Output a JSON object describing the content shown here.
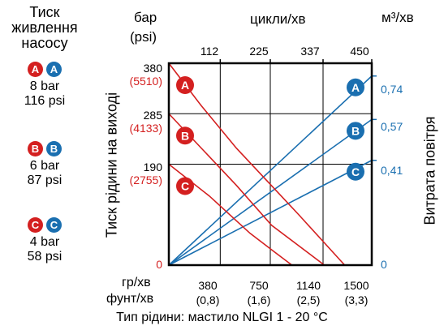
{
  "legend": {
    "title": "Тиск живлення насосу",
    "groups": [
      {
        "letter": "A",
        "bar": "8 bar",
        "psi": "116 psi"
      },
      {
        "letter": "B",
        "bar": "6 bar",
        "psi": "87 psi"
      },
      {
        "letter": "C",
        "bar": "4 bar",
        "psi": "58 psi"
      }
    ]
  },
  "colors": {
    "red": "#d42020",
    "blue": "#1a6fb0",
    "grid": "#000000"
  },
  "chart_data": {
    "type": "line",
    "left_axis": {
      "unit_top": "бар",
      "unit_bottom": "(psi)",
      "label": "Тиск рідини на виході",
      "ticks": [
        {
          "value": 0,
          "bar": "0",
          "psi": ""
        },
        {
          "value": 190,
          "bar": "190",
          "psi": "(2755)"
        },
        {
          "value": 285,
          "bar": "285",
          "psi": "(4133)"
        },
        {
          "value": 380,
          "bar": "380",
          "psi": "(5510)"
        }
      ],
      "ylim": [
        0,
        380
      ]
    },
    "right_axis": {
      "unit": "м³/хв",
      "label": "Витрата повітря",
      "ticks": [
        {
          "value": 0,
          "label": "0"
        },
        {
          "value": 0.41,
          "label": "0,41"
        },
        {
          "value": 0.57,
          "label": "0,57"
        },
        {
          "value": 0.74,
          "label": "0,74"
        }
      ],
      "ylim": [
        0,
        0.79
      ]
    },
    "top_axis": {
      "unit": "цикли/хв",
      "ticks": [
        {
          "value": 112,
          "label": "112"
        },
        {
          "value": 225,
          "label": "225"
        },
        {
          "value": 337,
          "label": "337"
        },
        {
          "value": 450,
          "label": "450"
        }
      ]
    },
    "bottom_axis": {
      "unit_top": "гр/хв",
      "unit_bottom": "фунт/хв",
      "ticks": [
        {
          "value": 380,
          "label": "380",
          "sub": "(0,8)"
        },
        {
          "value": 750,
          "label": "750",
          "sub": "(1,6)"
        },
        {
          "value": 1140,
          "label": "1140",
          "sub": "(2,5)"
        },
        {
          "value": 1500,
          "label": "1500",
          "sub": "(3,3)"
        }
      ],
      "xlim": [
        0,
        1500
      ]
    },
    "footer": "Тип рідини: мастило NLGI 1 - 20 °C",
    "grid": true,
    "pressure_series": [
      {
        "name": "A",
        "points": [
          [
            0,
            380
          ],
          [
            240,
            300
          ],
          [
            500,
            220
          ],
          [
            960,
            95
          ],
          [
            1300,
            0
          ]
        ]
      },
      {
        "name": "B",
        "points": [
          [
            0,
            285
          ],
          [
            500,
            150
          ],
          [
            760,
            75
          ],
          [
            1150,
            0
          ]
        ]
      },
      {
        "name": "C",
        "points": [
          [
            0,
            190
          ],
          [
            300,
            130
          ],
          [
            600,
            60
          ],
          [
            780,
            25
          ],
          [
            910,
            0
          ]
        ]
      }
    ],
    "air_series": [
      {
        "name": "A",
        "points": [
          [
            0,
            0
          ],
          [
            1500,
            0.74
          ]
        ]
      },
      {
        "name": "B",
        "points": [
          [
            0,
            0
          ],
          [
            1500,
            0.57
          ]
        ]
      },
      {
        "name": "C",
        "points": [
          [
            0,
            0
          ],
          [
            1500,
            0.41
          ]
        ]
      }
    ]
  }
}
